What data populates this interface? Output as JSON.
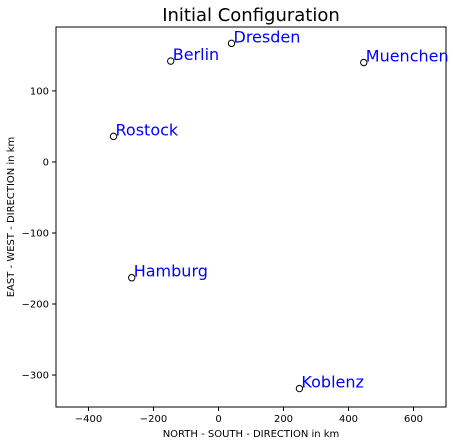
{
  "chart_data": {
    "type": "scatter",
    "title": "Initial Configuration",
    "xlabel": "NORTH - SOUTH - DIRECTION in km",
    "ylabel": "EAST - WEST - DIRECTION in km",
    "xlim": [
      -500,
      700
    ],
    "ylim": [
      -345,
      190
    ],
    "xticks": [
      -400,
      -200,
      0,
      200,
      400,
      600
    ],
    "yticks": [
      -300,
      -200,
      -100,
      0,
      100
    ],
    "marker": {
      "shape": "circle",
      "fill": "none",
      "edge_color": "#000000"
    },
    "label_color": "#0000ff",
    "grid": false,
    "points": [
      {
        "name": "Berlin",
        "x": -147,
        "y": 142
      },
      {
        "name": "Dresden",
        "x": 40,
        "y": 167
      },
      {
        "name": "Muenchen",
        "x": 447,
        "y": 140
      },
      {
        "name": "Rostock",
        "x": -323,
        "y": 36
      },
      {
        "name": "Hamburg",
        "x": -267,
        "y": -163
      },
      {
        "name": "Koblenz",
        "x": 249,
        "y": -319
      }
    ]
  }
}
